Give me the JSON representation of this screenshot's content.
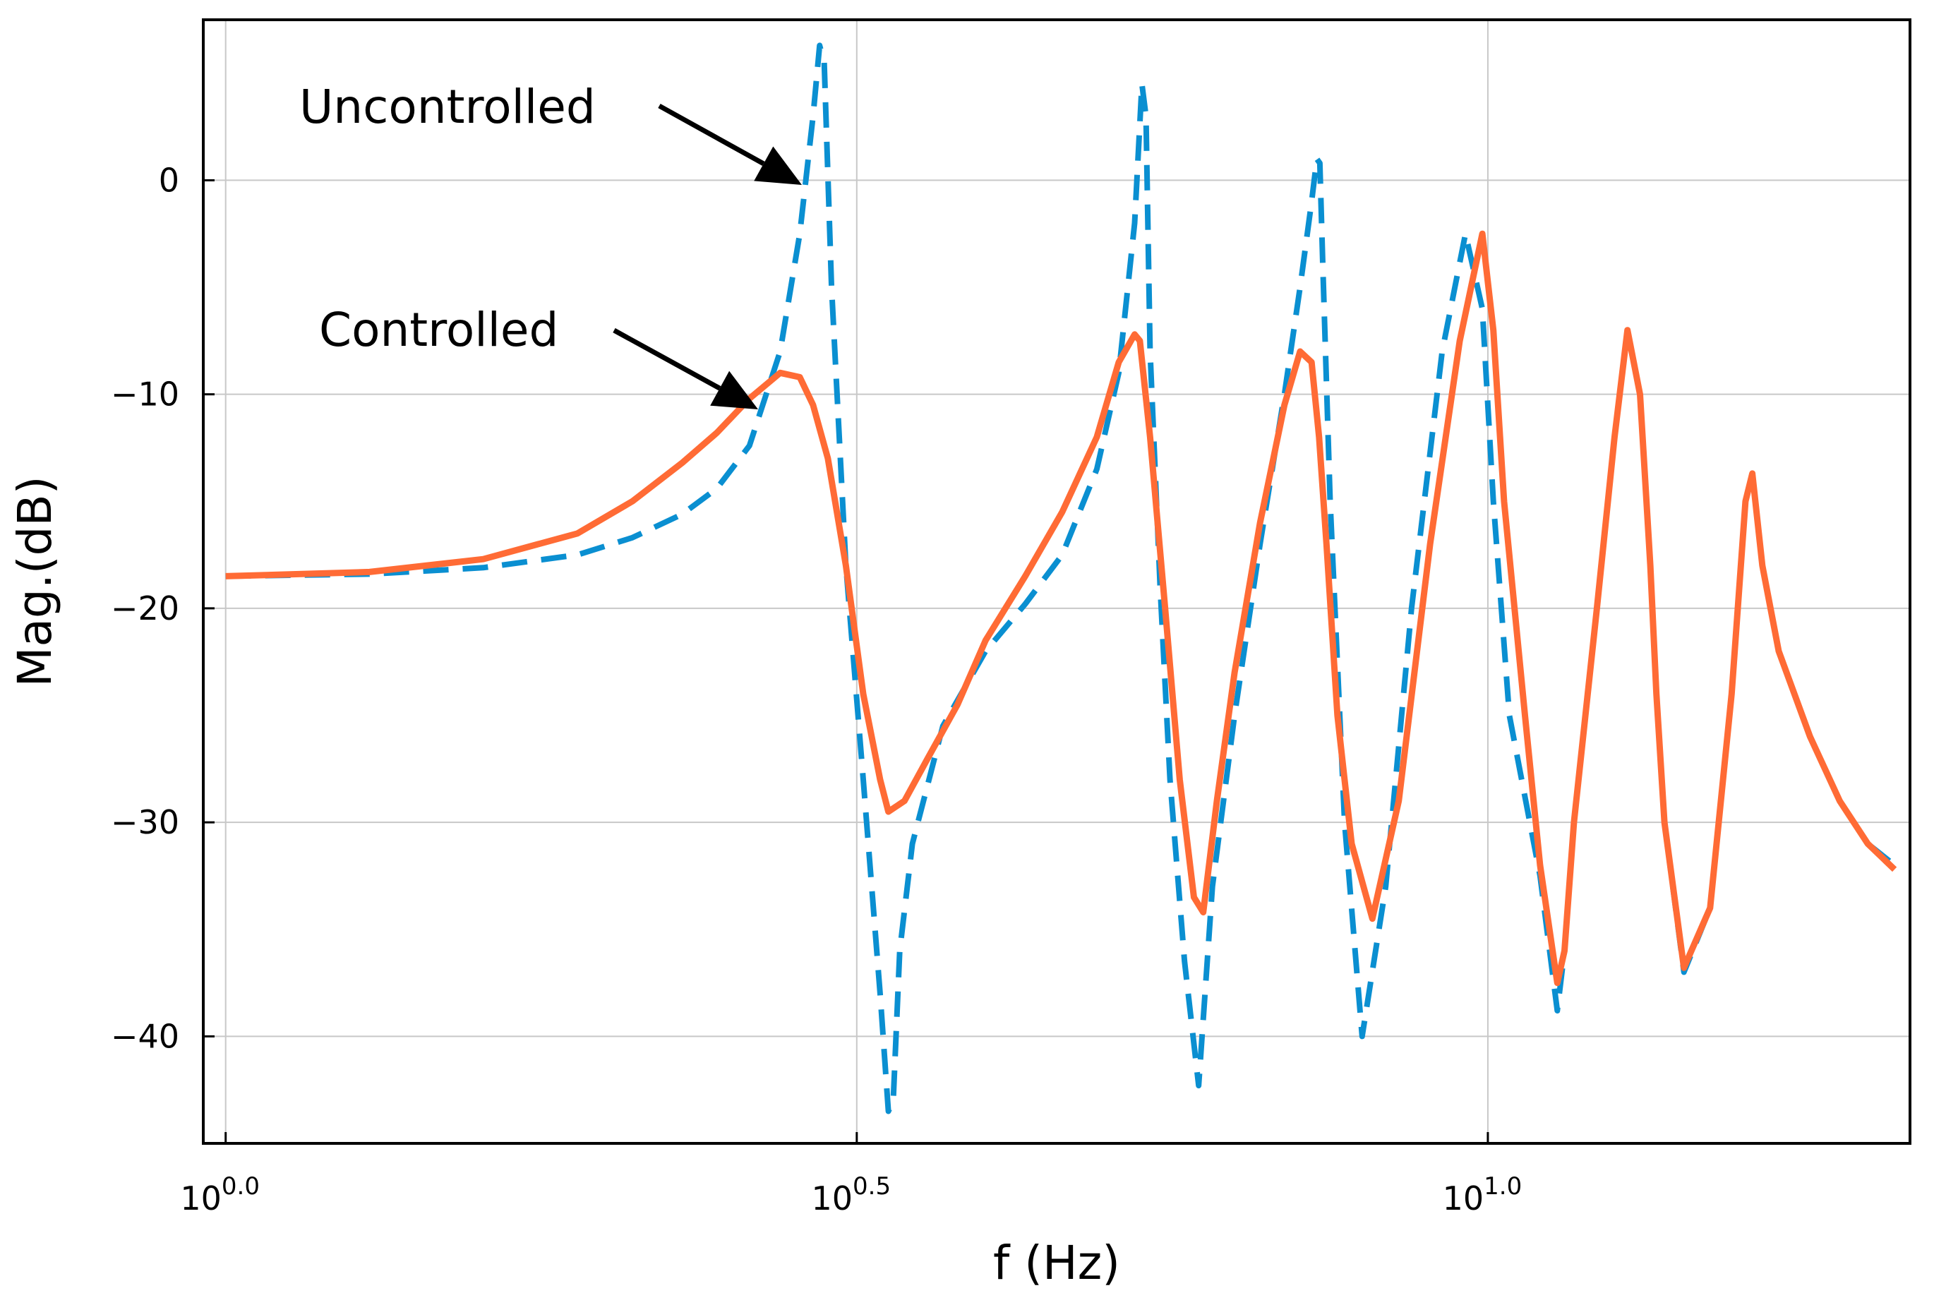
{
  "chart_data": {
    "type": "line",
    "title": "",
    "xlabel": "f (Hz)",
    "ylabel": "Mag.(dB)",
    "x_scale": "log10",
    "x_unit": "Hz",
    "xlim": [
      0.96,
      21.6
    ],
    "ylim": [
      -45,
      7.5
    ],
    "grid": true,
    "x_ticks": [
      {
        "value": 1.0,
        "label_base": "10",
        "label_exp": "0.0"
      },
      {
        "value": 3.1623,
        "label_base": "10",
        "label_exp": "0.5"
      },
      {
        "value": 10.0,
        "label_base": "10",
        "label_exp": "1.0"
      }
    ],
    "y_ticks": [
      {
        "value": 0,
        "label": "0"
      },
      {
        "value": -10,
        "label": "−10"
      },
      {
        "value": -20,
        "label": "−20"
      },
      {
        "value": -30,
        "label": "−30"
      },
      {
        "value": -40,
        "label": "−40"
      }
    ],
    "series": [
      {
        "name": "Uncontrolled",
        "color": "#0a8fd1",
        "style": "dashed",
        "x": [
          1.0,
          1.3,
          1.6,
          1.9,
          2.1,
          2.3,
          2.45,
          2.6,
          2.75,
          2.85,
          2.92,
          2.955,
          2.98,
          3.02,
          3.1,
          3.2,
          3.3,
          3.35,
          3.38,
          3.42,
          3.5,
          3.7,
          4.0,
          4.3,
          4.6,
          4.9,
          5.1,
          5.25,
          5.32,
          5.36,
          5.4,
          5.5,
          5.6,
          5.75,
          5.9,
          6.05,
          6.3,
          6.6,
          6.9,
          7.1,
          7.25,
          7.32,
          7.36,
          7.4,
          7.5,
          7.7,
          7.95,
          8.3,
          8.7,
          9.2,
          9.6,
          9.9,
          10.1,
          10.4,
          11.0,
          11.35,
          11.5,
          11.7,
          12.2,
          12.6,
          12.9,
          13.2,
          13.45,
          13.6,
          13.8,
          14.3,
          15.0,
          15.6,
          16.0,
          16.2,
          16.5,
          17.0,
          18.0,
          19.0,
          20.0,
          21.0
        ],
        "y": [
          -18.5,
          -18.4,
          -18.1,
          -17.5,
          -16.7,
          -15.6,
          -14.4,
          -12.4,
          -8.0,
          -2.5,
          3.0,
          6.3,
          5.5,
          -5.0,
          -18.0,
          -28.0,
          -38.0,
          -43.5,
          -43.0,
          -36.0,
          -31.0,
          -25.5,
          -22.0,
          -19.8,
          -17.5,
          -13.5,
          -9.0,
          -2.0,
          4.5,
          3.0,
          -8.0,
          -19.0,
          -28.0,
          -36.5,
          -42.3,
          -33.0,
          -25.0,
          -17.0,
          -10.0,
          -5.0,
          -1.0,
          1.0,
          0.8,
          -4.0,
          -15.0,
          -30.0,
          -40.0,
          -33.0,
          -20.0,
          -8.0,
          -2.5,
          -6.0,
          -15.0,
          -25.0,
          -32.5,
          -38.8,
          -36.0,
          -30.0,
          -20.0,
          -12.0,
          -7.0,
          -10.0,
          -18.0,
          -24.0,
          -30.0,
          -37.0,
          -34.0,
          -24.0,
          -15.0,
          -13.7,
          -18.0,
          -22.0,
          -26.0,
          -29.0,
          -31.0,
          -32.0
        ]
      },
      {
        "name": "Controlled",
        "color": "#ff6b35",
        "style": "solid",
        "x": [
          1.0,
          1.3,
          1.6,
          1.9,
          2.1,
          2.3,
          2.45,
          2.6,
          2.75,
          2.85,
          2.92,
          3.0,
          3.1,
          3.2,
          3.3,
          3.35,
          3.45,
          3.6,
          3.8,
          4.0,
          4.3,
          4.6,
          4.9,
          5.1,
          5.25,
          5.3,
          5.4,
          5.55,
          5.7,
          5.85,
          5.95,
          6.1,
          6.3,
          6.6,
          6.9,
          7.1,
          7.25,
          7.35,
          7.45,
          7.6,
          7.8,
          8.1,
          8.5,
          9.0,
          9.5,
          9.9,
          10.1,
          10.3,
          10.7,
          11.0,
          11.35,
          11.5,
          11.7,
          12.2,
          12.6,
          12.9,
          13.2,
          13.45,
          13.6,
          13.8,
          14.3,
          15.0,
          15.6,
          16.0,
          16.2,
          16.5,
          17.0,
          18.0,
          19.0,
          20.0,
          21.0
        ],
        "y": [
          -18.5,
          -18.3,
          -17.7,
          -16.5,
          -15.0,
          -13.2,
          -11.8,
          -10.2,
          -9.0,
          -9.2,
          -10.5,
          -13.0,
          -18.0,
          -24.0,
          -28.0,
          -29.5,
          -29.0,
          -27.0,
          -24.5,
          -21.5,
          -18.5,
          -15.5,
          -12.0,
          -8.5,
          -7.2,
          -7.5,
          -12.0,
          -20.0,
          -28.0,
          -33.5,
          -34.2,
          -29.0,
          -23.0,
          -16.0,
          -10.5,
          -8.0,
          -8.5,
          -12.0,
          -17.0,
          -25.0,
          -31.0,
          -34.5,
          -29.0,
          -17.0,
          -7.5,
          -2.5,
          -7.0,
          -15.0,
          -25.0,
          -32.0,
          -37.5,
          -36.0,
          -30.0,
          -20.0,
          -12.0,
          -7.0,
          -10.0,
          -18.0,
          -24.0,
          -30.0,
          -36.8,
          -34.0,
          -24.0,
          -15.0,
          -13.7,
          -18.0,
          -22.0,
          -26.0,
          -29.0,
          -31.0,
          -32.2
        ]
      }
    ],
    "annotations": [
      {
        "text": "Uncontrolled",
        "target": "Uncontrolled"
      },
      {
        "text": "Controlled",
        "target": "Controlled"
      }
    ]
  }
}
